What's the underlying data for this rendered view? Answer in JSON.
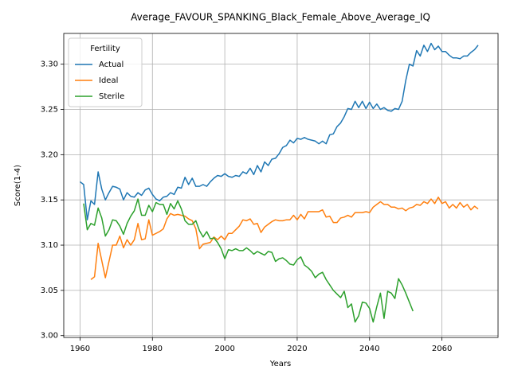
{
  "chart_data": {
    "type": "line",
    "title": "Average_FAVOUR_SPANKING_Black_Female_Above_Average_IQ",
    "xlabel": "Years",
    "ylabel": "Score(1-4)",
    "legend_title": "Fertility",
    "legend": "upper left",
    "grid": true,
    "xlim": [
      1955.5,
      2075.5
    ],
    "ylim": [
      2.998,
      3.334
    ],
    "xticks": [
      1960,
      1980,
      2000,
      2020,
      2040,
      2060
    ],
    "yticks": [
      {
        "value": 3.0,
        "label": "3.00"
      },
      {
        "value": 3.05,
        "label": "3.05"
      },
      {
        "value": 3.1,
        "label": "3.10"
      },
      {
        "value": 3.15,
        "label": "3.15"
      },
      {
        "value": 3.2,
        "label": "3.20"
      },
      {
        "value": 3.25,
        "label": "3.25"
      },
      {
        "value": 3.3,
        "label": "3.30"
      }
    ],
    "x": [
      1960,
      1961,
      1962,
      1963,
      1964,
      1965,
      1966,
      1967,
      1968,
      1969,
      1970,
      1971,
      1972,
      1973,
      1974,
      1975,
      1976,
      1977,
      1978,
      1979,
      1980,
      1981,
      1982,
      1983,
      1984,
      1985,
      1986,
      1987,
      1988,
      1989,
      1990,
      1991,
      1992,
      1993,
      1994,
      1995,
      1996,
      1997,
      1998,
      1999,
      2000,
      2001,
      2002,
      2003,
      2004,
      2005,
      2006,
      2007,
      2008,
      2009,
      2010,
      2011,
      2012,
      2013,
      2014,
      2015,
      2016,
      2017,
      2018,
      2019,
      2020,
      2021,
      2022,
      2023,
      2024,
      2025,
      2026,
      2027,
      2028,
      2029,
      2030,
      2031,
      2032,
      2033,
      2034,
      2035,
      2036,
      2037,
      2038,
      2039,
      2040,
      2041,
      2042,
      2043,
      2044,
      2045,
      2046,
      2047,
      2048,
      2049,
      2050,
      2051,
      2052,
      2053,
      2054,
      2055,
      2056,
      2057,
      2058,
      2059,
      2060,
      2061,
      2062,
      2063,
      2064,
      2065,
      2066,
      2067,
      2068,
      2069,
      2070
    ],
    "series": [
      {
        "name": "Actual",
        "color": "#1f77b4",
        "values": [
          3.17,
          3.167,
          3.128,
          3.149,
          3.145,
          3.181,
          3.162,
          3.15,
          3.158,
          3.165,
          3.164,
          3.162,
          3.15,
          3.158,
          3.154,
          3.153,
          3.158,
          3.155,
          3.161,
          3.163,
          3.156,
          3.151,
          3.149,
          3.153,
          3.154,
          3.158,
          3.156,
          3.164,
          3.163,
          3.175,
          3.167,
          3.174,
          3.165,
          3.165,
          3.167,
          3.165,
          3.17,
          3.174,
          3.177,
          3.176,
          3.179,
          3.176,
          3.175,
          3.177,
          3.176,
          3.181,
          3.179,
          3.185,
          3.178,
          3.188,
          3.181,
          3.192,
          3.188,
          3.195,
          3.196,
          3.201,
          3.208,
          3.21,
          3.216,
          3.213,
          3.218,
          3.217,
          3.219,
          3.217,
          3.216,
          3.215,
          3.212,
          3.215,
          3.212,
          3.222,
          3.223,
          3.231,
          3.235,
          3.242,
          3.251,
          3.25,
          3.259,
          3.252,
          3.259,
          3.251,
          3.258,
          3.251,
          3.256,
          3.25,
          3.252,
          3.249,
          3.248,
          3.251,
          3.25,
          3.259,
          3.282,
          3.3,
          3.298,
          3.315,
          3.309,
          3.321,
          3.314,
          3.323,
          3.316,
          3.32,
          3.314,
          3.314,
          3.31,
          3.307,
          3.307,
          3.306,
          3.309,
          3.309,
          3.313,
          3.316,
          3.321
        ]
      },
      {
        "name": "Ideal",
        "color": "#ff7f0e",
        "values": [
          null,
          null,
          null,
          3.062,
          3.065,
          3.102,
          3.083,
          3.064,
          3.082,
          3.1,
          3.1,
          3.11,
          3.097,
          3.106,
          3.1,
          3.106,
          3.124,
          3.106,
          3.107,
          3.128,
          3.111,
          3.113,
          3.115,
          3.118,
          3.129,
          3.135,
          3.133,
          3.134,
          3.133,
          3.132,
          3.129,
          3.127,
          3.118,
          3.096,
          3.101,
          3.102,
          3.103,
          3.109,
          3.106,
          3.11,
          3.106,
          3.113,
          3.113,
          3.117,
          3.121,
          3.128,
          3.127,
          3.129,
          3.123,
          3.124,
          3.114,
          3.12,
          3.123,
          3.126,
          3.128,
          3.127,
          3.127,
          3.128,
          3.128,
          3.133,
          3.128,
          3.134,
          3.129,
          3.137,
          3.137,
          3.137,
          3.137,
          3.139,
          3.131,
          3.132,
          3.125,
          3.125,
          3.13,
          3.131,
          3.133,
          3.131,
          3.136,
          3.136,
          3.136,
          3.137,
          3.136,
          3.142,
          3.145,
          3.148,
          3.145,
          3.145,
          3.142,
          3.142,
          3.14,
          3.141,
          3.138,
          3.141,
          3.142,
          3.145,
          3.144,
          3.148,
          3.146,
          3.151,
          3.146,
          3.153,
          3.146,
          3.148,
          3.141,
          3.145,
          3.141,
          3.147,
          3.142,
          3.145,
          3.139,
          3.143,
          3.14
        ]
      },
      {
        "name": "Sterile",
        "color": "#2ca02c",
        "values": [
          null,
          3.146,
          3.117,
          3.124,
          3.122,
          3.141,
          3.13,
          3.11,
          3.117,
          3.128,
          3.127,
          3.121,
          3.112,
          3.124,
          3.132,
          3.138,
          3.151,
          3.133,
          3.133,
          3.144,
          3.137,
          3.147,
          3.145,
          3.145,
          3.134,
          3.146,
          3.14,
          3.149,
          3.14,
          3.127,
          3.123,
          3.123,
          3.127,
          3.116,
          3.109,
          3.115,
          3.107,
          3.108,
          3.103,
          3.096,
          3.085,
          3.095,
          3.094,
          3.096,
          3.094,
          3.094,
          3.097,
          3.094,
          3.09,
          3.093,
          3.091,
          3.089,
          3.093,
          3.092,
          3.082,
          3.085,
          3.086,
          3.083,
          3.079,
          3.078,
          3.084,
          3.087,
          3.078,
          3.075,
          3.071,
          3.064,
          3.068,
          3.07,
          3.062,
          3.056,
          3.05,
          3.046,
          3.042,
          3.049,
          3.031,
          3.035,
          3.015,
          3.022,
          3.037,
          3.036,
          3.03,
          3.015,
          3.032,
          3.047,
          3.019,
          3.049,
          3.047,
          3.041,
          3.063,
          3.056,
          3.047,
          3.037,
          3.027,
          null,
          null,
          null,
          null,
          null,
          null,
          null,
          null,
          null,
          null,
          null,
          null,
          null,
          null,
          null,
          null,
          null,
          null
        ]
      }
    ]
  }
}
